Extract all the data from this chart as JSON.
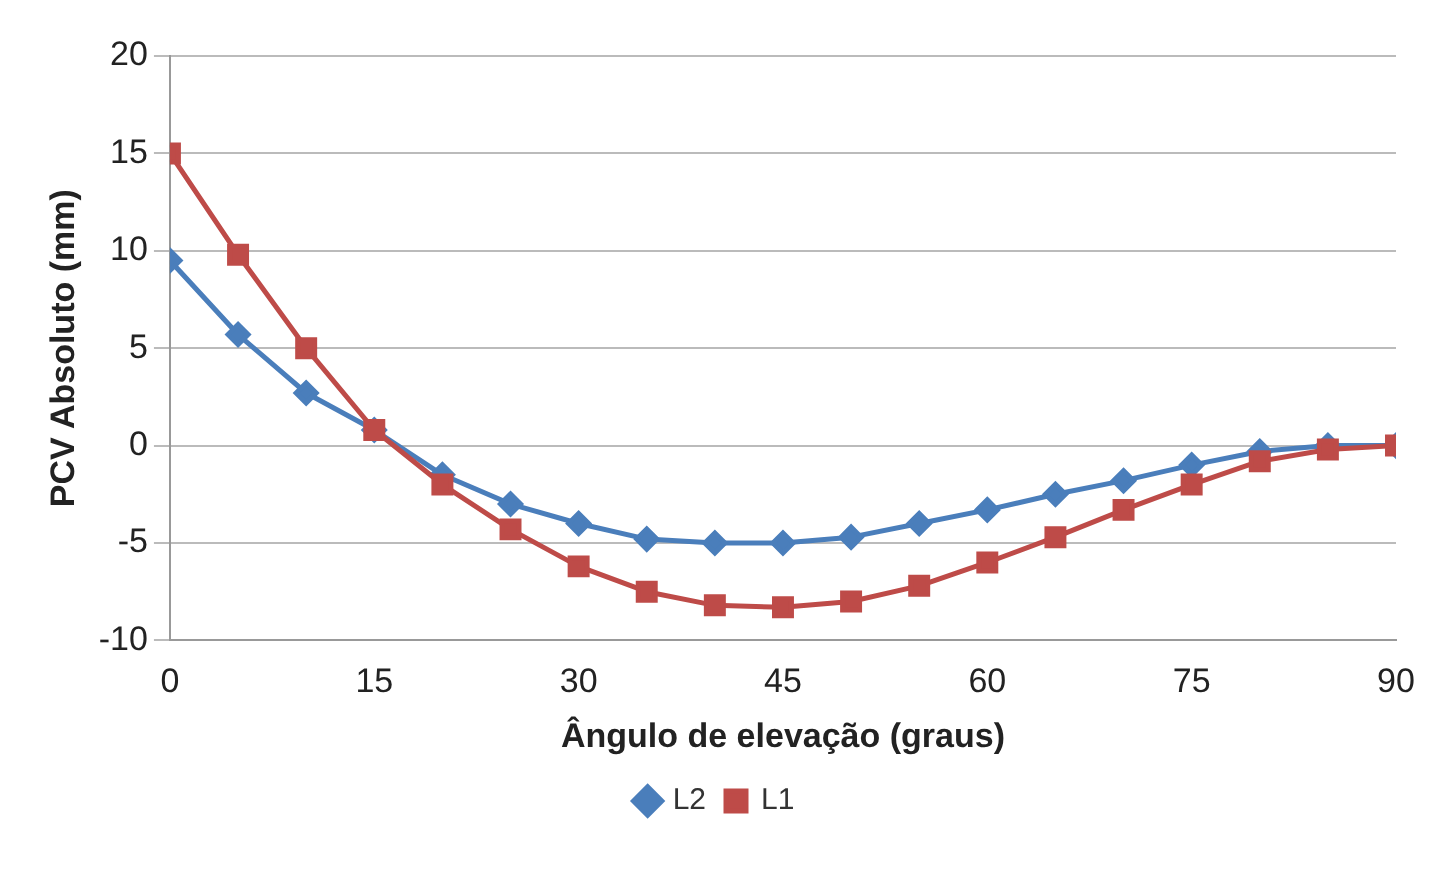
{
  "chart_data": {
    "type": "line",
    "xlabel": "Ângulo de elevação (graus)",
    "ylabel": "PCV Absoluto (mm)",
    "x": [
      0,
      5,
      10,
      15,
      20,
      25,
      30,
      35,
      40,
      45,
      50,
      55,
      60,
      65,
      70,
      75,
      80,
      85,
      90
    ],
    "series": [
      {
        "name": "L2",
        "color": "#4a7ebb",
        "marker": "diamond",
        "values": [
          9.5,
          5.7,
          2.7,
          0.8,
          -1.5,
          -3,
          -4,
          -4.8,
          -5,
          -5,
          -4.7,
          -4,
          -3.3,
          -2.5,
          -1.8,
          -1,
          -0.3,
          0,
          0
        ]
      },
      {
        "name": "L1",
        "color": "#be4b48",
        "marker": "square",
        "values": [
          15,
          9.8,
          5,
          0.8,
          -2,
          -4.3,
          -6.2,
          -7.5,
          -8.2,
          -8.3,
          -8,
          -7.2,
          -6,
          -4.7,
          -3.3,
          -2,
          -0.8,
          -0.2,
          0
        ]
      }
    ],
    "xlim": [
      0,
      90
    ],
    "xticks": [
      0,
      15,
      30,
      45,
      60,
      75,
      90
    ],
    "ylim": [
      -10,
      20
    ],
    "yticks": [
      -10,
      -5,
      0,
      5,
      10,
      15,
      20
    ],
    "grid": "y",
    "legend": "bottom"
  }
}
